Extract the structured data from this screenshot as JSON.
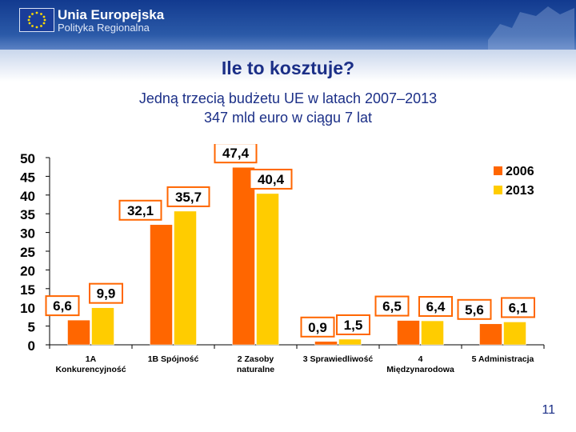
{
  "header": {
    "org_name": "Unia Europejska",
    "org_subtitle": "Polityka Regionalna"
  },
  "slide": {
    "title": "Ile to kosztuje?",
    "subtitle_line1": "Jedną trzecią budżetu UE w latach 2007–2013",
    "subtitle_line2": "347 mld euro w ciągu 7 lat",
    "page_number": "11"
  },
  "colors": {
    "series_2006": "#ff6600",
    "series_2013": "#ffcc00",
    "label_box": "#ff6600",
    "text": "#1b2f87"
  },
  "chart_data": {
    "type": "bar",
    "categories": [
      [
        "1A",
        "Konkurencyjność"
      ],
      [
        "1B Spójność"
      ],
      [
        "2 Zasoby",
        "naturalne"
      ],
      [
        "3 Sprawiedliwość"
      ],
      [
        "4",
        "Międzynarodowa"
      ],
      [
        "5 Administracja"
      ]
    ],
    "series": [
      {
        "name": "2006",
        "values": [
          6.6,
          32.1,
          47.4,
          0.9,
          6.5,
          5.6
        ],
        "labels": [
          "6,6",
          "32,1",
          "47,4",
          "0,9",
          "6,5",
          "5,6"
        ]
      },
      {
        "name": "2013",
        "values": [
          9.9,
          35.7,
          40.4,
          1.5,
          6.4,
          6.1
        ],
        "labels": [
          "9,9",
          "35,7",
          "40,4",
          "1,5",
          "6,4",
          "6,1"
        ]
      }
    ],
    "y_ticks": [
      0,
      5,
      10,
      15,
      20,
      25,
      30,
      35,
      40,
      45,
      50
    ],
    "ylim": [
      0,
      50
    ],
    "legend_position": "top-right",
    "title": "",
    "xlabel": "",
    "ylabel": ""
  }
}
